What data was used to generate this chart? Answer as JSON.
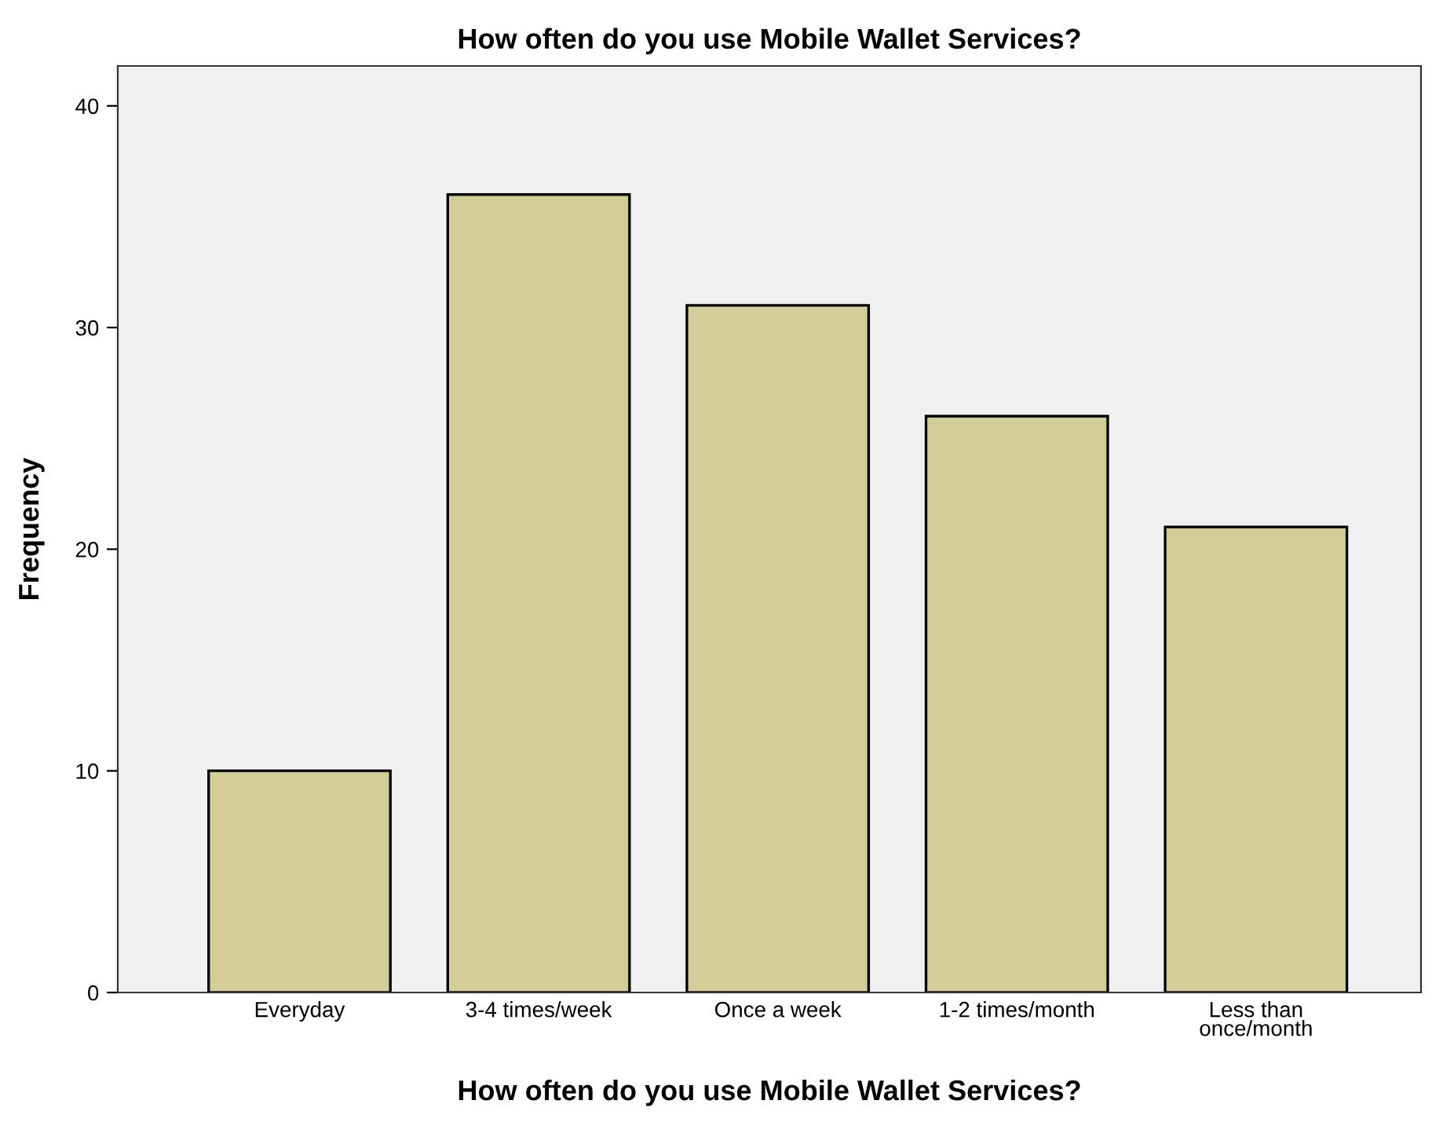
{
  "chart_data": {
    "type": "bar",
    "title": "How often do you use Mobile Wallet Services?",
    "xlabel": "How often do you use Mobile Wallet Services?",
    "ylabel": "Frequency",
    "categories": [
      "Everyday",
      "3-4 times/week",
      "Once a week",
      "1-2 times/month",
      "Less than\nonce/month"
    ],
    "values": [
      10,
      36,
      31,
      26,
      21
    ],
    "color": "#d3ce98",
    "ylim": [
      0,
      41.8
    ],
    "yticks": [
      0,
      10,
      20,
      30,
      40
    ],
    "grid": false,
    "legend": false
  }
}
